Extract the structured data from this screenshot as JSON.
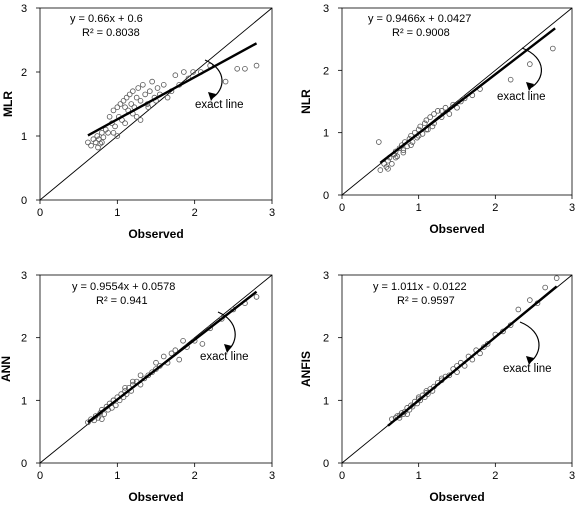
{
  "chart_data": [
    {
      "type": "scatter",
      "xlabel": "Observed",
      "ylabel": "MLR",
      "xlim": [
        0,
        3
      ],
      "ylim": [
        0,
        3
      ],
      "xticks": [
        "0",
        "1",
        "2",
        "3"
      ],
      "yticks": [
        "0",
        "1",
        "2",
        "3"
      ],
      "equation": "y = 0.66x + 0.6",
      "r2_label": "R² = 0.8038",
      "annotation": "exact line",
      "fit": {
        "slope": 0.66,
        "intercept": 0.6,
        "x_range": [
          0.62,
          2.8
        ]
      },
      "exact_line": {
        "x_range": [
          0,
          3
        ]
      },
      "points": {
        "x": [
          0.62,
          0.66,
          0.69,
          0.72,
          0.74,
          0.76,
          0.78,
          0.8,
          0.82,
          0.85,
          0.88,
          0.9,
          0.93,
          0.95,
          0.97,
          1.0,
          1.02,
          1.04,
          1.06,
          1.08,
          1.1,
          1.12,
          1.14,
          1.16,
          1.18,
          1.2,
          1.22,
          1.25,
          1.27,
          1.3,
          1.33,
          1.36,
          1.39,
          1.42,
          1.45,
          1.48,
          1.52,
          1.55,
          1.6,
          1.65,
          1.7,
          1.75,
          1.8,
          1.86,
          1.92,
          1.98,
          2.08,
          2.2,
          2.4,
          2.55,
          2.65,
          2.8,
          0.8,
          1.0,
          1.2,
          1.3,
          0.95,
          1.5,
          0.75,
          1.1,
          1.25,
          1.4
        ],
        "y": [
          0.9,
          0.85,
          0.95,
          0.9,
          1.0,
          0.95,
          0.88,
          1.05,
          0.98,
          1.1,
          1.05,
          1.3,
          1.2,
          1.4,
          1.15,
          1.45,
          1.3,
          1.5,
          1.25,
          1.55,
          1.45,
          1.6,
          1.4,
          1.65,
          1.5,
          1.7,
          1.45,
          1.6,
          1.75,
          1.55,
          1.8,
          1.65,
          1.5,
          1.7,
          1.85,
          1.6,
          1.75,
          1.65,
          1.8,
          1.6,
          1.7,
          1.95,
          1.8,
          2.0,
          1.9,
          2.0,
          2.0,
          2.1,
          1.85,
          2.05,
          2.05,
          2.1,
          0.9,
          1.0,
          1.35,
          1.25,
          1.05,
          1.55,
          0.82,
          1.2,
          1.3,
          1.45
        ]
      }
    },
    {
      "type": "scatter",
      "xlabel": "Observed",
      "ylabel": "NLR",
      "xlim": [
        0,
        3
      ],
      "ylim": [
        0,
        3
      ],
      "xticks": [
        "0",
        "1",
        "2",
        "3"
      ],
      "yticks": [
        "0",
        "1",
        "2",
        "3"
      ],
      "equation": "y = 0.9466x + 0.0427",
      "r2_label": "R² = 0.9008",
      "annotation": "exact line",
      "fit": {
        "slope": 0.9466,
        "intercept": 0.0427,
        "x_range": [
          0.5,
          2.78
        ]
      },
      "exact_line": {
        "x_range": [
          0,
          3
        ]
      },
      "points": {
        "x": [
          0.48,
          0.5,
          0.55,
          0.58,
          0.6,
          0.62,
          0.65,
          0.68,
          0.7,
          0.72,
          0.75,
          0.78,
          0.8,
          0.82,
          0.85,
          0.88,
          0.9,
          0.92,
          0.95,
          0.98,
          1.0,
          1.02,
          1.05,
          1.08,
          1.1,
          1.12,
          1.15,
          1.18,
          1.2,
          1.25,
          1.3,
          1.35,
          1.4,
          1.45,
          1.5,
          1.55,
          1.6,
          1.7,
          1.8,
          2.2,
          2.45,
          2.75,
          0.7,
          0.9,
          1.0,
          1.1,
          1.2,
          0.8,
          0.6,
          1.3
        ],
        "y": [
          0.85,
          0.4,
          0.5,
          0.45,
          0.55,
          0.6,
          0.5,
          0.65,
          0.7,
          0.62,
          0.75,
          0.8,
          0.72,
          0.85,
          0.78,
          0.9,
          0.95,
          0.85,
          1.0,
          0.92,
          1.05,
          1.1,
          0.98,
          1.15,
          1.2,
          1.05,
          1.25,
          1.1,
          1.3,
          1.35,
          1.25,
          1.4,
          1.3,
          1.45,
          1.4,
          1.5,
          1.55,
          1.6,
          1.7,
          1.85,
          2.1,
          2.35,
          0.6,
          0.8,
          0.95,
          1.05,
          1.15,
          0.68,
          0.42,
          1.35
        ]
      }
    },
    {
      "type": "scatter",
      "xlabel": "Observed",
      "ylabel": "ANN",
      "xlim": [
        0,
        3
      ],
      "ylim": [
        0,
        3
      ],
      "xticks": [
        "0",
        "1",
        "2",
        "3"
      ],
      "yticks": [
        "0",
        "1",
        "2",
        "3"
      ],
      "equation": "y = 0.9554x + 0.0578",
      "r2_label": "R² = 0.941",
      "annotation": "exact line",
      "fit": {
        "slope": 0.9554,
        "intercept": 0.0578,
        "x_range": [
          0.62,
          2.8
        ]
      },
      "exact_line": {
        "x_range": [
          0,
          3
        ]
      },
      "points": {
        "x": [
          0.62,
          0.66,
          0.7,
          0.72,
          0.75,
          0.78,
          0.8,
          0.83,
          0.86,
          0.88,
          0.9,
          0.93,
          0.95,
          0.98,
          1.0,
          1.03,
          1.05,
          1.08,
          1.1,
          1.12,
          1.15,
          1.18,
          1.2,
          1.25,
          1.3,
          1.35,
          1.4,
          1.45,
          1.5,
          1.55,
          1.6,
          1.65,
          1.7,
          1.75,
          1.8,
          1.85,
          1.9,
          2.0,
          2.1,
          2.2,
          2.35,
          2.5,
          2.65,
          2.8,
          0.8,
          0.95,
          1.1,
          1.2,
          1.3,
          1.5
        ],
        "y": [
          0.65,
          0.7,
          0.68,
          0.75,
          0.72,
          0.8,
          0.85,
          0.78,
          0.9,
          0.85,
          0.95,
          0.88,
          1.0,
          0.92,
          1.05,
          1.0,
          1.1,
          1.05,
          1.15,
          1.1,
          1.2,
          1.15,
          1.25,
          1.3,
          1.25,
          1.35,
          1.4,
          1.45,
          1.5,
          1.55,
          1.7,
          1.6,
          1.75,
          1.8,
          1.65,
          1.95,
          1.85,
          1.95,
          1.9,
          2.15,
          2.3,
          2.45,
          2.55,
          2.65,
          0.7,
          1.0,
          1.2,
          1.3,
          1.4,
          1.6
        ]
      }
    },
    {
      "type": "scatter",
      "xlabel": "Observed",
      "ylabel": "ANFIS",
      "xlim": [
        0,
        3
      ],
      "ylim": [
        0,
        3
      ],
      "xticks": [
        "0",
        "1",
        "2",
        "3"
      ],
      "yticks": [
        "0",
        "1",
        "2",
        "3"
      ],
      "equation": "y = 1.011x - 0.0122",
      "r2_label": "R² = 0.9597",
      "annotation": "exact line",
      "fit": {
        "slope": 1.011,
        "intercept": -0.0122,
        "x_range": [
          0.6,
          2.8
        ]
      },
      "exact_line": {
        "x_range": [
          0,
          3
        ]
      },
      "points": {
        "x": [
          0.65,
          0.7,
          0.72,
          0.75,
          0.78,
          0.8,
          0.82,
          0.85,
          0.88,
          0.9,
          0.92,
          0.95,
          0.98,
          1.0,
          1.02,
          1.05,
          1.08,
          1.1,
          1.12,
          1.15,
          1.18,
          1.2,
          1.25,
          1.3,
          1.35,
          1.4,
          1.45,
          1.5,
          1.55,
          1.6,
          1.65,
          1.7,
          1.75,
          1.8,
          1.85,
          1.9,
          2.0,
          2.1,
          2.2,
          2.3,
          2.45,
          2.55,
          2.65,
          2.8,
          0.85,
          1.0,
          1.1,
          1.3,
          1.5,
          0.75
        ],
        "y": [
          0.7,
          0.72,
          0.75,
          0.72,
          0.8,
          0.78,
          0.82,
          0.88,
          0.85,
          0.92,
          0.9,
          0.98,
          0.95,
          1.02,
          1.0,
          1.08,
          1.05,
          1.12,
          1.1,
          1.18,
          1.15,
          1.22,
          1.28,
          1.32,
          1.38,
          1.4,
          1.5,
          1.45,
          1.6,
          1.55,
          1.7,
          1.65,
          1.8,
          1.75,
          1.85,
          1.9,
          2.05,
          2.1,
          2.2,
          2.45,
          2.6,
          2.55,
          2.8,
          2.95,
          0.78,
          1.05,
          1.15,
          1.35,
          1.55,
          0.76
        ]
      }
    }
  ]
}
